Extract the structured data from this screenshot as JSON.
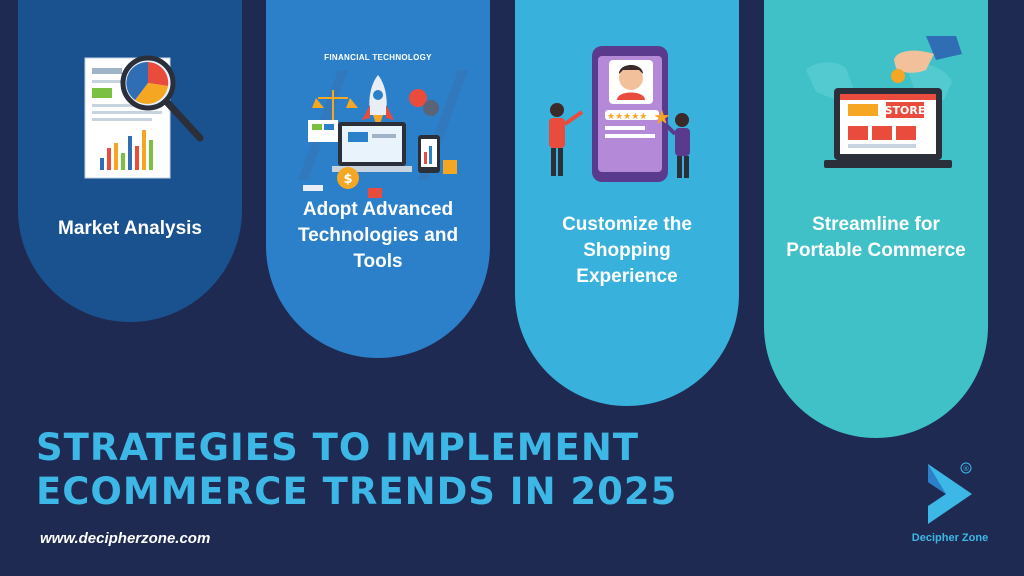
{
  "cards": [
    {
      "title": "Market Analysis"
    },
    {
      "title": "Adopt Advanced Technologies and Tools",
      "illustration_label": "FINANCIAL TECHNOLOGY"
    },
    {
      "title": "Customize the Shopping Experience"
    },
    {
      "title": "Streamline for Portable Commerce",
      "illustration_label": "STORE"
    }
  ],
  "headline": {
    "line1": "STRATEGIES TO IMPLEMENT",
    "line2": "ECOMMERCE TRENDS IN 2025"
  },
  "website": "www.decipherzone.com",
  "logo": {
    "name": "Decipher Zone",
    "registered_mark": "®"
  },
  "colors": {
    "background": "#1f2a52",
    "card1": "#1a5290",
    "card2": "#2b80c9",
    "card3": "#38b1dc",
    "card4": "#3fc1c7",
    "accent": "#3db8e6"
  },
  "icons": [
    "market-analysis-illustration",
    "fintech-illustration",
    "shopping-review-illustration",
    "online-store-illustration",
    "decipher-zone-logo-icon"
  ]
}
